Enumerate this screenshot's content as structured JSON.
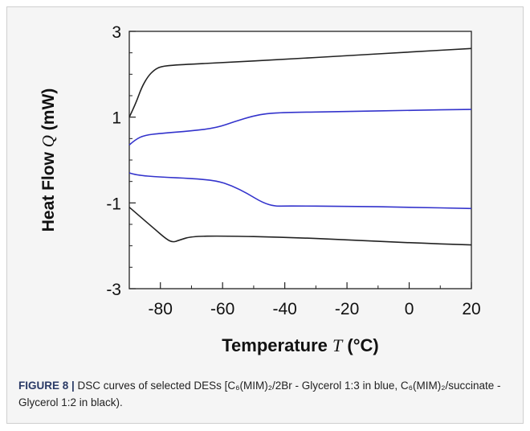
{
  "chart_data": {
    "type": "line",
    "xlabel_main": "Temperature",
    "xlabel_symbol": "T",
    "xlabel_unit": "(°C)",
    "ylabel_main": "Heat Flow",
    "ylabel_symbol": "Q",
    "ylabel_unit": "(mW)",
    "xlim": [
      -90,
      20
    ],
    "ylim": [
      -3,
      3
    ],
    "xticks": [
      -80,
      -60,
      -40,
      -20,
      0,
      20
    ],
    "yticks": [
      -3,
      -1,
      1,
      3
    ],
    "grid": false,
    "series": [
      {
        "color": "#222222",
        "points": [
          [
            -90,
            1.0
          ],
          [
            -88,
            1.3
          ],
          [
            -86,
            1.7
          ],
          [
            -84,
            1.95
          ],
          [
            -82,
            2.1
          ],
          [
            -80,
            2.18
          ],
          [
            -75,
            2.22
          ],
          [
            -60,
            2.27
          ],
          [
            -40,
            2.35
          ],
          [
            -20,
            2.43
          ],
          [
            0,
            2.52
          ],
          [
            20,
            2.6
          ]
        ]
      },
      {
        "color": "#3333cc",
        "points": [
          [
            -90,
            0.35
          ],
          [
            -88,
            0.48
          ],
          [
            -85,
            0.58
          ],
          [
            -80,
            0.62
          ],
          [
            -70,
            0.68
          ],
          [
            -62,
            0.75
          ],
          [
            -56,
            0.9
          ],
          [
            -50,
            1.03
          ],
          [
            -46,
            1.08
          ],
          [
            -40,
            1.11
          ],
          [
            -20,
            1.13
          ],
          [
            0,
            1.16
          ],
          [
            20,
            1.18
          ]
        ]
      },
      {
        "color": "#3333cc",
        "points": [
          [
            -90,
            -0.3
          ],
          [
            -88,
            -0.35
          ],
          [
            -80,
            -0.4
          ],
          [
            -70,
            -0.43
          ],
          [
            -62,
            -0.48
          ],
          [
            -57,
            -0.6
          ],
          [
            -52,
            -0.78
          ],
          [
            -47,
            -1.0
          ],
          [
            -43,
            -1.08
          ],
          [
            -40,
            -1.07
          ],
          [
            -20,
            -1.08
          ],
          [
            0,
            -1.1
          ],
          [
            20,
            -1.13
          ]
        ]
      },
      {
        "color": "#222222",
        "points": [
          [
            -90,
            -1.1
          ],
          [
            -86,
            -1.35
          ],
          [
            -82,
            -1.6
          ],
          [
            -78,
            -1.85
          ],
          [
            -76,
            -1.92
          ],
          [
            -74,
            -1.87
          ],
          [
            -70,
            -1.78
          ],
          [
            -60,
            -1.77
          ],
          [
            -40,
            -1.8
          ],
          [
            -20,
            -1.86
          ],
          [
            0,
            -1.93
          ],
          [
            20,
            -1.98
          ]
        ]
      }
    ]
  },
  "caption": {
    "label": "FIGURE 8 |",
    "text": " DSC curves of selected DESs [C₆(MIM)₂/2Br - Glycerol 1:3 in blue, C₆(MIM)₂/succinate - Glycerol 1:2 in black)."
  }
}
